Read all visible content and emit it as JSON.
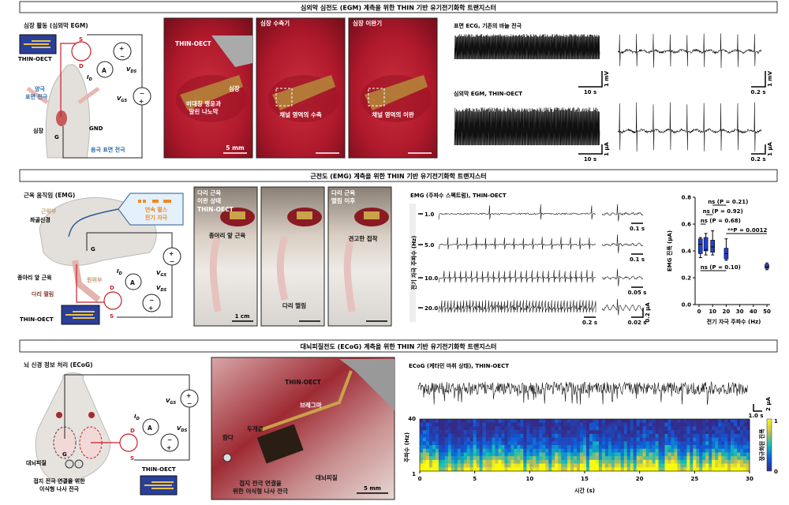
{
  "colors": {
    "red_circuit": "#c8202a",
    "blue_label": "#2a6aa8",
    "orange_stim": "#f08a1c",
    "box_fill": "#1f3fd6",
    "photo_tissue": "#b3182a"
  },
  "panel_a": {
    "title": "심외막 심전도 (EGM) 계측을 위한 THIN 기반 유기전기화학 트랜지스터",
    "schematic": {
      "heading": "심장 활동 (심외막 EGM)",
      "device": "THIN-OECT",
      "anode": [
        "양극",
        "표면 전극"
      ],
      "cathode": "음극 표면 전극",
      "heart": "심장",
      "gnd": "GND",
      "S": "S",
      "D": "D",
      "G": "G",
      "A": "A",
      "ID": "I",
      "ID_sub": "D",
      "VDS": "V",
      "VDS_sub": "DS",
      "VGS": "V",
      "VGS_sub": "GS"
    },
    "photos": [
      {
        "title": "",
        "labels": [
          "THIN-OECT",
          "심장",
          "비대칭 팽윤과",
          "말린 나노막"
        ],
        "scale": "5 mm"
      },
      {
        "title": "심장 수축기",
        "labels": [
          "채널 영역의 수축"
        ],
        "scale": ""
      },
      {
        "title": "심장 이완기",
        "labels": [
          "채널 영역의 이완"
        ],
        "scale": ""
      }
    ],
    "traces": {
      "ecg_label": "표면 ECG, 기존의 바늘 전극",
      "egm_label": "심외막 EGM, THIN-OECT",
      "ecg_scale_t": "10 s",
      "ecg_scale_v": "1 mV",
      "ecg_zoom_t": "0.2 s",
      "ecg_zoom_v": "1 mV",
      "egm_scale_t": "10 s",
      "egm_scale_v": "1 μA",
      "egm_zoom_t": "0.2 s",
      "egm_zoom_v": "1 μA"
    }
  },
  "panel_b": {
    "title": "근전도 (EMG) 계측을 위한 THIN 기반 유기전기화학 트랜지스터",
    "schematic": {
      "heading": "근육 움직임 (EMG)",
      "proximal": "근위부",
      "sciatic": "좌골신경",
      "stim": [
        "연속 펄스",
        "전기 자극"
      ],
      "tibialis": "종아리 앞 근육",
      "distal": "원위부",
      "twitch": "다리 떨림",
      "device": "THIN-OECT",
      "G": "G",
      "D": "D",
      "S": "S",
      "A": "A",
      "ID": "I",
      "ID_sub": "D",
      "VGS": "V",
      "VGS_sub": "GS",
      "VDS": "V",
      "VDS_sub": "DS"
    },
    "photos": [
      {
        "title": [
          "다리 근육",
          "이완 상태"
        ],
        "labels": [
          "THIN-OECT",
          "종아리 앞 근육"
        ],
        "scale": "1 cm"
      },
      {
        "title": [
          "",
          ""
        ],
        "labels": [
          "다리 떨림"
        ],
        "scale": ""
      },
      {
        "title": [
          "다리 근육",
          "떨림 이후"
        ],
        "labels": [
          "견고한 접착"
        ],
        "scale": ""
      }
    ],
    "emg": {
      "label": "EMG (주파수 스펙트럼), THIN-OECT",
      "ylabel": "전기 자극 주파수 (Hz)",
      "rows": [
        "1.0",
        "5.0",
        "10.0",
        "20.0"
      ],
      "zoom_scales": [
        "0.1 s",
        "0.1 s",
        "0.05 s",
        "0.02 s"
      ],
      "main_scale": "0.2 s",
      "amp_scale": "0.2 μA"
    }
  },
  "chart_data": {
    "type": "box",
    "xlabel": "전기 자극 주파수 (Hz)",
    "ylabel": "EMG 진폭 (μA)",
    "xlim": [
      0,
      50
    ],
    "ylim": [
      0,
      0.8
    ],
    "xticks": [
      "0",
      "10",
      "20",
      "30",
      "40",
      "50"
    ],
    "yticks": [
      "0.0",
      "0.2",
      "0.4",
      "0.6",
      "0.8"
    ],
    "boxes": [
      {
        "x": 1,
        "min": 0.35,
        "q1": 0.38,
        "median": 0.45,
        "q3": 0.49,
        "max": 0.5
      },
      {
        "x": 5,
        "min": 0.37,
        "q1": 0.4,
        "median": 0.41,
        "q3": 0.5,
        "max": 0.53
      },
      {
        "x": 10,
        "min": 0.37,
        "q1": 0.39,
        "median": 0.43,
        "q3": 0.48,
        "max": 0.55
      },
      {
        "x": 20,
        "min": 0.33,
        "q1": 0.34,
        "median": 0.38,
        "q3": 0.42,
        "max": 0.49
      },
      {
        "x": 50,
        "min": 0.26,
        "q1": 0.27,
        "median": 0.28,
        "q3": 0.3,
        "max": 0.31
      }
    ],
    "annotations": [
      {
        "text": "ns (P = 0.21)",
        "from": 10,
        "to": 20
      },
      {
        "text": "ns (P = 0.92)",
        "from": 5,
        "to": 10
      },
      {
        "text": "ns (P = 0.68)",
        "from": 1,
        "to": 5
      },
      {
        "text": "**P = 0.0012",
        "from": 20,
        "to": 50
      },
      {
        "text": "ns (P = 0.10)",
        "from": 1,
        "to": 20
      }
    ]
  },
  "panel_c": {
    "title": "대뇌피질전도 (ECoG) 계측을 위한 THIN 기반 유기전기화학 트랜지스터",
    "schematic": {
      "heading": "뇌 신경 정보 처리 (ECoG)",
      "cortex": "대뇌피질",
      "screws": [
        "접지 전극 연결을 위한",
        "이식형 나사 전극"
      ],
      "device": "THIN-OECT",
      "G": "G",
      "D": "D",
      "S": "S",
      "A": "A",
      "ID": "I",
      "ID_sub": "D",
      "VGS": "V",
      "VGS_sub": "GS",
      "VDS": "V",
      "VDS_sub": "DS"
    },
    "photo": {
      "labels": [
        "THIN-OECT",
        "브레그마",
        "두개골",
        "람다",
        "대뇌피질"
      ],
      "screws": [
        "접지 전극 연결을",
        "위한 이식형 나사 전극"
      ],
      "scale": "5 mm"
    },
    "ecog": {
      "label": "ECoG (케타민 마취 상태), THIN-OECT",
      "amp_scale": "2 μA",
      "time_scale": "1.0 s",
      "spectrogram": {
        "ylabel": "주파수 (Hz)",
        "yticks": [
          "40",
          "1"
        ],
        "xlabel": "시간 (s)",
        "xticks": [
          "0",
          "5",
          "10",
          "15",
          "20",
          "25",
          "30"
        ],
        "xlim": [
          0,
          30
        ],
        "ylim": [
          1,
          40
        ],
        "colorbar_label": "정규화된 진폭",
        "colorbar_ticks": [
          "1",
          "0"
        ],
        "colormap": "parula"
      }
    }
  }
}
